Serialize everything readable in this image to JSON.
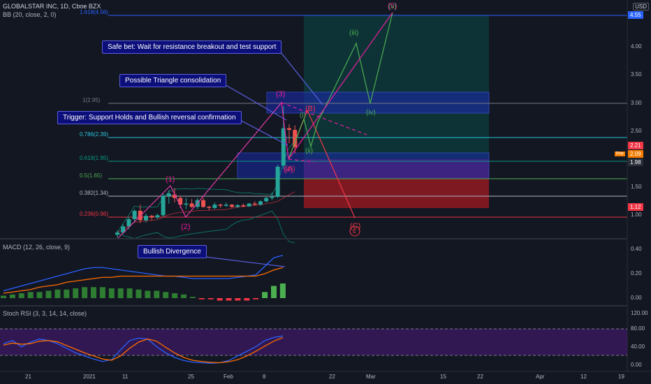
{
  "header": {
    "symbol_line": "GLOBALSTAR INC, 1D, Cboe BZX",
    "bb_line": "BB (20, close, 2, 0)",
    "macd_line": "MACD (12, 26, close, 9)",
    "stoch_line": "Stoch RSI (3, 3, 14, 14, close)",
    "currency_button": "USD"
  },
  "callouts": {
    "safe_bet": "Safe bet: Wait for resistance breakout and test support",
    "triangle": "Possible Triangle consolidation",
    "trigger": "Trigger: Support Holds and Bullish reversal confirmation",
    "divergence": "Bullish Divergence"
  },
  "fib_levels": [
    {
      "label": "1.618(4.56)",
      "color": "#2962ff"
    },
    {
      "label": "1(2.95)",
      "color": "#787b86"
    },
    {
      "label": "0.786(2.39)",
      "color": "#26c6da"
    },
    {
      "label": "0.618(1.95)",
      "color": "#089981"
    },
    {
      "label": "0.5(1.65)",
      "color": "#4caf50"
    },
    {
      "label": "0.382(1.34)",
      "color": "#b2b5be"
    },
    {
      "label": "0.236(0.96)",
      "color": "#f23645"
    }
  ],
  "wave_labels": {
    "w1": "(1)",
    "w2": "(2)",
    "w3": "(3)",
    "w4": "(4)",
    "w5": "(5)",
    "wA": "(A)",
    "wB": "(B)",
    "wC": "(C)",
    "wE": "E",
    "i": "(i)",
    "ii": "(ii)",
    "iii": "(iii)",
    "iv": "(iv)",
    "v": "(v)"
  },
  "price_axis": {
    "ticks": [
      "4.00",
      "3.50",
      "3.00",
      "2.50",
      "1.50",
      "1.00"
    ],
    "tags": [
      {
        "text": "4.55",
        "bg": "#2962ff"
      },
      {
        "text": "2.21",
        "bg": "#f23645"
      },
      {
        "text": "2.09",
        "bg": "#f57c00"
      },
      {
        "text": "1.98",
        "bg": "#2a2e39"
      },
      {
        "text": "1.12",
        "bg": "#f23645"
      }
    ],
    "pre_label": "Pre"
  },
  "macd_axis": {
    "ticks": [
      "0.40",
      "0.20",
      "0.00"
    ]
  },
  "stoch_axis": {
    "ticks": [
      "120.00",
      "80.00",
      "40.00",
      "0.00"
    ]
  },
  "time_axis": {
    "ticks": [
      "21",
      "2021",
      "11",
      "25",
      "Feb",
      "8",
      "22",
      "Mar",
      "15",
      "22",
      "Apr",
      "12",
      "19"
    ]
  },
  "colors": {
    "background": "#131722",
    "up": "#26a69a",
    "down": "#ef5350",
    "wave_purple": "#e91e9c",
    "wave_green": "#4caf50",
    "box_blue": "#1a2aa8",
    "target_teal": "#0e3d3f",
    "stop_red": "#8b1a22",
    "stop_magenta": "#7a1f5c"
  },
  "candles": [
    {
      "o": 0.64,
      "h": 0.72,
      "l": 0.59,
      "c": 0.68
    },
    {
      "o": 0.68,
      "h": 0.83,
      "l": 0.65,
      "c": 0.79
    },
    {
      "o": 0.79,
      "h": 0.96,
      "l": 0.74,
      "c": 0.92
    },
    {
      "o": 0.92,
      "h": 1.1,
      "l": 0.86,
      "c": 1.07
    },
    {
      "o": 1.07,
      "h": 1.18,
      "l": 0.85,
      "c": 0.9
    },
    {
      "o": 0.9,
      "h": 1.02,
      "l": 0.86,
      "c": 0.98
    },
    {
      "o": 0.98,
      "h": 1.0,
      "l": 0.9,
      "c": 0.95
    },
    {
      "o": 0.95,
      "h": 1.02,
      "l": 0.92,
      "c": 0.99
    },
    {
      "o": 0.99,
      "h": 1.38,
      "l": 0.96,
      "c": 1.34
    },
    {
      "o": 1.34,
      "h": 1.44,
      "l": 1.2,
      "c": 1.38
    },
    {
      "o": 1.36,
      "h": 1.48,
      "l": 1.22,
      "c": 1.3
    },
    {
      "o": 1.3,
      "h": 1.34,
      "l": 1.12,
      "c": 1.18
    },
    {
      "o": 1.18,
      "h": 1.3,
      "l": 1.1,
      "c": 1.2
    },
    {
      "o": 1.2,
      "h": 1.28,
      "l": 1.12,
      "c": 1.14
    },
    {
      "o": 1.14,
      "h": 1.3,
      "l": 1.1,
      "c": 1.26
    },
    {
      "o": 1.26,
      "h": 1.31,
      "l": 1.12,
      "c": 1.14
    },
    {
      "o": 1.14,
      "h": 1.16,
      "l": 1.08,
      "c": 1.12
    },
    {
      "o": 1.12,
      "h": 1.22,
      "l": 1.1,
      "c": 1.18
    },
    {
      "o": 1.18,
      "h": 1.2,
      "l": 1.12,
      "c": 1.16
    },
    {
      "o": 1.16,
      "h": 1.22,
      "l": 1.14,
      "c": 1.18
    },
    {
      "o": 1.18,
      "h": 1.19,
      "l": 1.12,
      "c": 1.14
    },
    {
      "o": 1.14,
      "h": 1.19,
      "l": 1.12,
      "c": 1.17
    },
    {
      "o": 1.17,
      "h": 1.2,
      "l": 1.13,
      "c": 1.15
    },
    {
      "o": 1.15,
      "h": 1.21,
      "l": 1.14,
      "c": 1.2
    },
    {
      "o": 1.2,
      "h": 1.24,
      "l": 1.16,
      "c": 1.18
    },
    {
      "o": 1.18,
      "h": 1.26,
      "l": 1.16,
      "c": 1.24
    },
    {
      "o": 1.24,
      "h": 1.32,
      "l": 1.22,
      "c": 1.3
    },
    {
      "o": 1.3,
      "h": 1.4,
      "l": 1.26,
      "c": 1.32
    },
    {
      "o": 1.32,
      "h": 1.9,
      "l": 1.3,
      "c": 1.86
    },
    {
      "o": 1.88,
      "h": 2.95,
      "l": 1.82,
      "c": 2.55
    },
    {
      "o": 2.55,
      "h": 2.62,
      "l": 2.28,
      "c": 2.52
    },
    {
      "o": 2.52,
      "h": 2.6,
      "l": 2.1,
      "c": 2.21
    }
  ],
  "macd_hist": [
    0.02,
    0.03,
    0.04,
    0.05,
    0.05,
    0.06,
    0.07,
    0.07,
    0.08,
    0.09,
    0.09,
    0.09,
    0.08,
    0.08,
    0.08,
    0.07,
    0.06,
    0.06,
    0.05,
    0.04,
    0.03,
    0.01,
    -0.01,
    -0.01,
    -0.02,
    -0.02,
    -0.02,
    -0.02,
    -0.01,
    0.05,
    0.1,
    0.12
  ],
  "macd_line": [
    0.06,
    0.08,
    0.1,
    0.12,
    0.14,
    0.16,
    0.18,
    0.2,
    0.22,
    0.24,
    0.25,
    0.25,
    0.24,
    0.23,
    0.22,
    0.21,
    0.2,
    0.19,
    0.18,
    0.18,
    0.17,
    0.16,
    0.16,
    0.16,
    0.16,
    0.16,
    0.17,
    0.18,
    0.19,
    0.26,
    0.33,
    0.35
  ],
  "signal_line": [
    0.04,
    0.05,
    0.06,
    0.07,
    0.09,
    0.1,
    0.11,
    0.13,
    0.14,
    0.15,
    0.16,
    0.17,
    0.17,
    0.18,
    0.18,
    0.18,
    0.18,
    0.18,
    0.18,
    0.18,
    0.18,
    0.18,
    0.18,
    0.18,
    0.18,
    0.18,
    0.18,
    0.18,
    0.18,
    0.2,
    0.23,
    0.25
  ],
  "stoch_k": [
    70,
    80,
    60,
    75,
    85,
    80,
    70,
    55,
    40,
    30,
    20,
    12,
    18,
    50,
    80,
    88,
    85,
    60,
    40,
    25,
    15,
    10,
    8,
    6,
    8,
    15,
    30,
    45,
    60,
    80,
    90,
    95
  ],
  "stoch_d": [
    65,
    72,
    68,
    70,
    78,
    80,
    76,
    64,
    52,
    40,
    30,
    20,
    16,
    30,
    55,
    75,
    85,
    78,
    58,
    40,
    25,
    16,
    12,
    9,
    8,
    11,
    18,
    30,
    45,
    62,
    78,
    90
  ]
}
